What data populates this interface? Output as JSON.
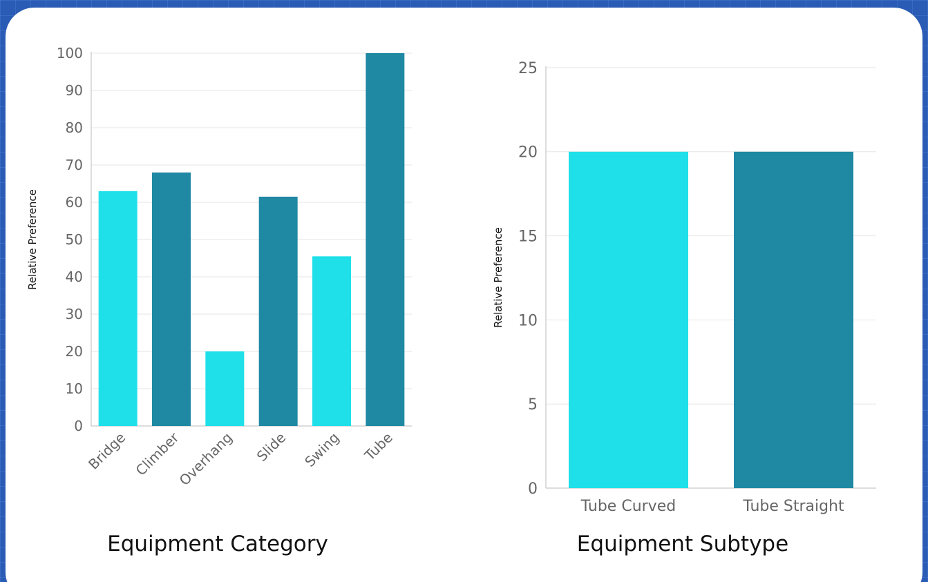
{
  "colors": {
    "bar_light": "#1fe0e8",
    "bar_dark": "#1f88a3",
    "grid": "#e6e6e6",
    "axis": "#bbbbbb",
    "background_card": "#ffffff"
  },
  "chart_data": [
    {
      "type": "bar",
      "title": "",
      "xlabel": "Equipment Category",
      "ylabel": "Relative Preference",
      "categories": [
        "Bridge",
        "Climber",
        "Overhang",
        "Slide",
        "Swing",
        "Tube"
      ],
      "values": [
        63,
        68,
        20,
        61.5,
        45.5,
        100
      ],
      "ylim": [
        0,
        100
      ],
      "yticks": [
        0,
        10,
        20,
        30,
        40,
        50,
        60,
        70,
        80,
        90,
        100
      ],
      "grid": true,
      "tick_rotation": "-45deg"
    },
    {
      "type": "bar",
      "title": "",
      "xlabel": "Equipment Subtype",
      "ylabel": "Relative Preference",
      "categories": [
        "Tube Curved",
        "Tube Straight"
      ],
      "values": [
        20,
        20
      ],
      "ylim": [
        0,
        25
      ],
      "yticks": [
        0,
        5,
        10,
        15,
        20,
        25
      ],
      "grid": true,
      "tick_rotation": "0deg"
    }
  ]
}
